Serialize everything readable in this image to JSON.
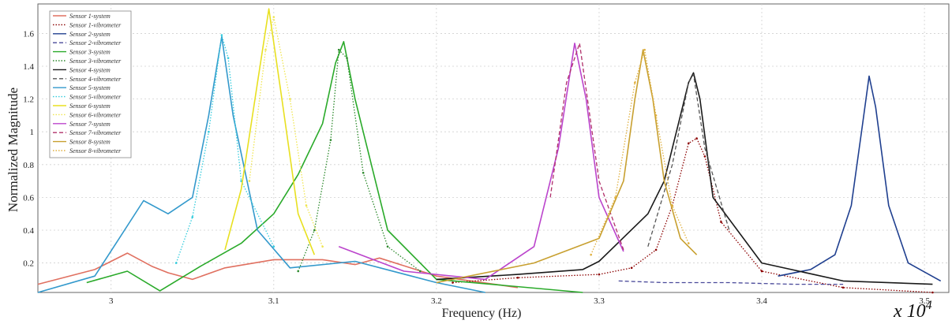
{
  "chart_data": {
    "type": "line",
    "title": "",
    "xlabel": "Frequency (Hz)",
    "ylabel": "Normalized Magnitude",
    "x_multiplier_label": "x 10",
    "x_multiplier_exponent": "4",
    "xlim": [
      2.955,
      3.515
    ],
    "ylim": [
      0.02,
      1.78
    ],
    "xticks": [
      3,
      3.1,
      3.2,
      3.3,
      3.4,
      3.5
    ],
    "xtick_labels": [
      "3",
      "3.1",
      "3.2",
      "3.3",
      "3.4",
      "3.5"
    ],
    "yticks": [
      0.2,
      0.4,
      0.6,
      0.8,
      1.0,
      1.2,
      1.4,
      1.6
    ],
    "ytick_labels": [
      "0.2",
      "0.4",
      "0.6",
      "0.8",
      "1",
      "1.2",
      "1.4",
      "1.6"
    ],
    "grid": true,
    "legend_position": "top-left",
    "series": [
      {
        "name": "Sensor 1-system",
        "color": "#e07060",
        "dash": "solid",
        "x": [
          2.955,
          2.99,
          3.01,
          3.025,
          3.035,
          3.05,
          3.07,
          3.1,
          3.13,
          3.15,
          3.165,
          3.2,
          3.25
        ],
        "y": [
          0.07,
          0.16,
          0.26,
          0.18,
          0.14,
          0.1,
          0.17,
          0.22,
          0.22,
          0.19,
          0.23,
          0.12,
          0.05
        ]
      },
      {
        "name": "Sensor 1-vibrometer",
        "color": "#8b0000",
        "dash": "dotted",
        "x": [
          3.21,
          3.25,
          3.3,
          3.32,
          3.335,
          3.345,
          3.355,
          3.36,
          3.365,
          3.375,
          3.4,
          3.45,
          3.505
        ],
        "y": [
          0.08,
          0.11,
          0.13,
          0.17,
          0.28,
          0.55,
          0.93,
          0.96,
          0.85,
          0.45,
          0.15,
          0.05,
          0.02
        ]
      },
      {
        "name": "Sensor 2-system",
        "color": "#1f3f8f",
        "dash": "solid",
        "x": [
          3.41,
          3.43,
          3.445,
          3.455,
          3.462,
          3.466,
          3.47,
          3.478,
          3.49,
          3.51
        ],
        "y": [
          0.12,
          0.16,
          0.25,
          0.55,
          1.05,
          1.34,
          1.15,
          0.55,
          0.2,
          0.09
        ]
      },
      {
        "name": "Sensor 2-vibrometer",
        "color": "#4a4a9a",
        "dash": "dashed",
        "x": [
          3.312,
          3.34,
          3.38,
          3.42,
          3.45
        ],
        "y": [
          0.09,
          0.08,
          0.08,
          0.07,
          0.07
        ]
      },
      {
        "name": "Sensor 3-system",
        "color": "#2aaa2a",
        "dash": "solid",
        "x": [
          2.985,
          3.01,
          3.03,
          3.055,
          3.08,
          3.1,
          3.115,
          3.13,
          3.138,
          3.143,
          3.15,
          3.17,
          3.2,
          3.29
        ],
        "y": [
          0.08,
          0.15,
          0.03,
          0.18,
          0.32,
          0.5,
          0.74,
          1.05,
          1.42,
          1.55,
          1.2,
          0.4,
          0.1,
          0.02
        ]
      },
      {
        "name": "Sensor 3-vibrometer",
        "color": "#2d8a2d",
        "dash": "dotted",
        "x": [
          3.115,
          3.125,
          3.135,
          3.14,
          3.145,
          3.155,
          3.17,
          3.19
        ],
        "y": [
          0.15,
          0.4,
          0.95,
          1.5,
          1.45,
          0.75,
          0.3,
          0.15
        ]
      },
      {
        "name": "Sensor 4-system",
        "color": "#1a1a1a",
        "dash": "solid",
        "x": [
          3.2,
          3.25,
          3.29,
          3.3,
          3.33,
          3.34,
          3.35,
          3.355,
          3.358,
          3.362,
          3.37,
          3.4,
          3.45,
          3.505
        ],
        "y": [
          0.1,
          0.13,
          0.16,
          0.21,
          0.5,
          0.7,
          1.1,
          1.3,
          1.36,
          1.2,
          0.6,
          0.2,
          0.09,
          0.07
        ]
      },
      {
        "name": "Sensor 4-vibrometer",
        "color": "#555555",
        "dash": "dashed",
        "x": [
          3.33,
          3.345,
          3.355,
          3.358,
          3.365,
          3.38
        ],
        "y": [
          0.3,
          0.8,
          1.3,
          1.35,
          0.9,
          0.4
        ]
      },
      {
        "name": "Sensor 5-system",
        "color": "#3399cc",
        "dash": "solid",
        "x": [
          2.955,
          2.99,
          3.005,
          3.02,
          3.035,
          3.05,
          3.06,
          3.068,
          3.075,
          3.09,
          3.11,
          3.15,
          3.2,
          3.23
        ],
        "y": [
          0.02,
          0.12,
          0.35,
          0.58,
          0.5,
          0.6,
          1.1,
          1.58,
          1.1,
          0.4,
          0.17,
          0.21,
          0.08,
          0.02
        ]
      },
      {
        "name": "Sensor 5-vibrometer",
        "color": "#33ccdd",
        "dash": "dotted",
        "x": [
          3.04,
          3.05,
          3.06,
          3.068,
          3.072,
          3.08,
          3.1
        ],
        "y": [
          0.2,
          0.48,
          1.0,
          1.59,
          1.45,
          0.7,
          0.3
        ]
      },
      {
        "name": "Sensor 6-system",
        "color": "#e8e020",
        "dash": "solid",
        "x": [
          3.07,
          3.08,
          3.09,
          3.097,
          3.105,
          3.115,
          3.125
        ],
        "y": [
          0.28,
          0.65,
          1.3,
          1.75,
          1.2,
          0.5,
          0.25
        ]
      },
      {
        "name": "Sensor 6-vibrometer",
        "color": "#f0e650",
        "dash": "dotted",
        "x": [
          3.085,
          3.095,
          3.1,
          3.11,
          3.12,
          3.13
        ],
        "y": [
          0.7,
          1.5,
          1.7,
          1.2,
          0.55,
          0.3
        ]
      },
      {
        "name": "Sensor 7-system",
        "color": "#bb44cc",
        "dash": "solid",
        "x": [
          3.14,
          3.18,
          3.23,
          3.26,
          3.275,
          3.285,
          3.292,
          3.3,
          3.315
        ],
        "y": [
          0.3,
          0.15,
          0.1,
          0.3,
          0.9,
          1.54,
          1.2,
          0.6,
          0.27
        ]
      },
      {
        "name": "Sensor 7-vibrometer",
        "color": "#b0306a",
        "dash": "dashed",
        "x": [
          3.27,
          3.28,
          3.288,
          3.3,
          3.315
        ],
        "y": [
          0.6,
          1.3,
          1.54,
          0.7,
          0.28
        ]
      },
      {
        "name": "Sensor 8-system",
        "color": "#c8a030",
        "dash": "solid",
        "x": [
          3.2,
          3.26,
          3.3,
          3.315,
          3.322,
          3.327,
          3.333,
          3.34,
          3.35,
          3.36
        ],
        "y": [
          0.08,
          0.2,
          0.35,
          0.7,
          1.2,
          1.5,
          1.2,
          0.7,
          0.35,
          0.25
        ]
      },
      {
        "name": "Sensor 8-vibrometer",
        "color": "#e0b040",
        "dash": "dotted",
        "x": [
          3.295,
          3.31,
          3.322,
          3.328,
          3.335,
          3.345,
          3.355
        ],
        "y": [
          0.25,
          0.6,
          1.3,
          1.5,
          1.1,
          0.55,
          0.32
        ]
      }
    ]
  }
}
